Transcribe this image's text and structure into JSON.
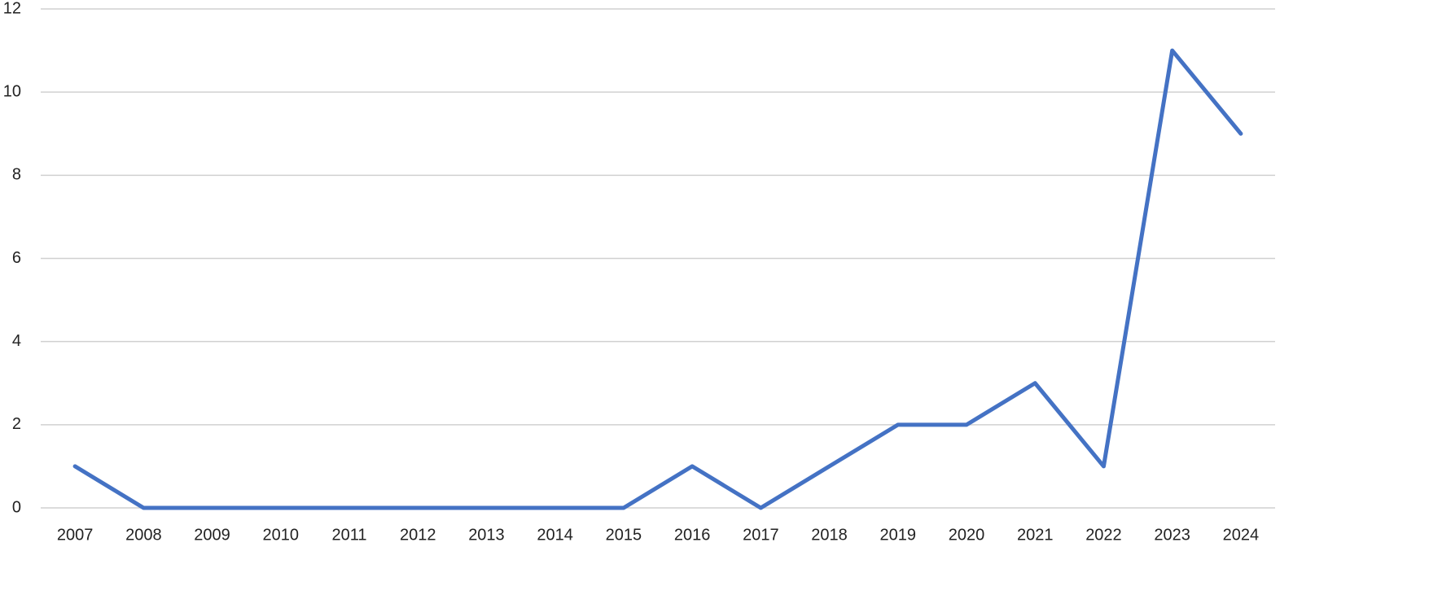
{
  "chart_data": {
    "type": "line",
    "categories": [
      "2007",
      "2008",
      "2009",
      "2010",
      "2011",
      "2012",
      "2013",
      "2014",
      "2015",
      "2016",
      "2017",
      "2018",
      "2019",
      "2020",
      "2021",
      "2022",
      "2023",
      "2024"
    ],
    "values": [
      1,
      0,
      0,
      0,
      0,
      0,
      0,
      0,
      0,
      1,
      0,
      1,
      2,
      2,
      3,
      1,
      11,
      9
    ],
    "color": "#4472c4",
    "ylim": [
      0,
      12
    ],
    "yticks": [
      0,
      2,
      4,
      6,
      8,
      10,
      12
    ],
    "grid": true
  }
}
